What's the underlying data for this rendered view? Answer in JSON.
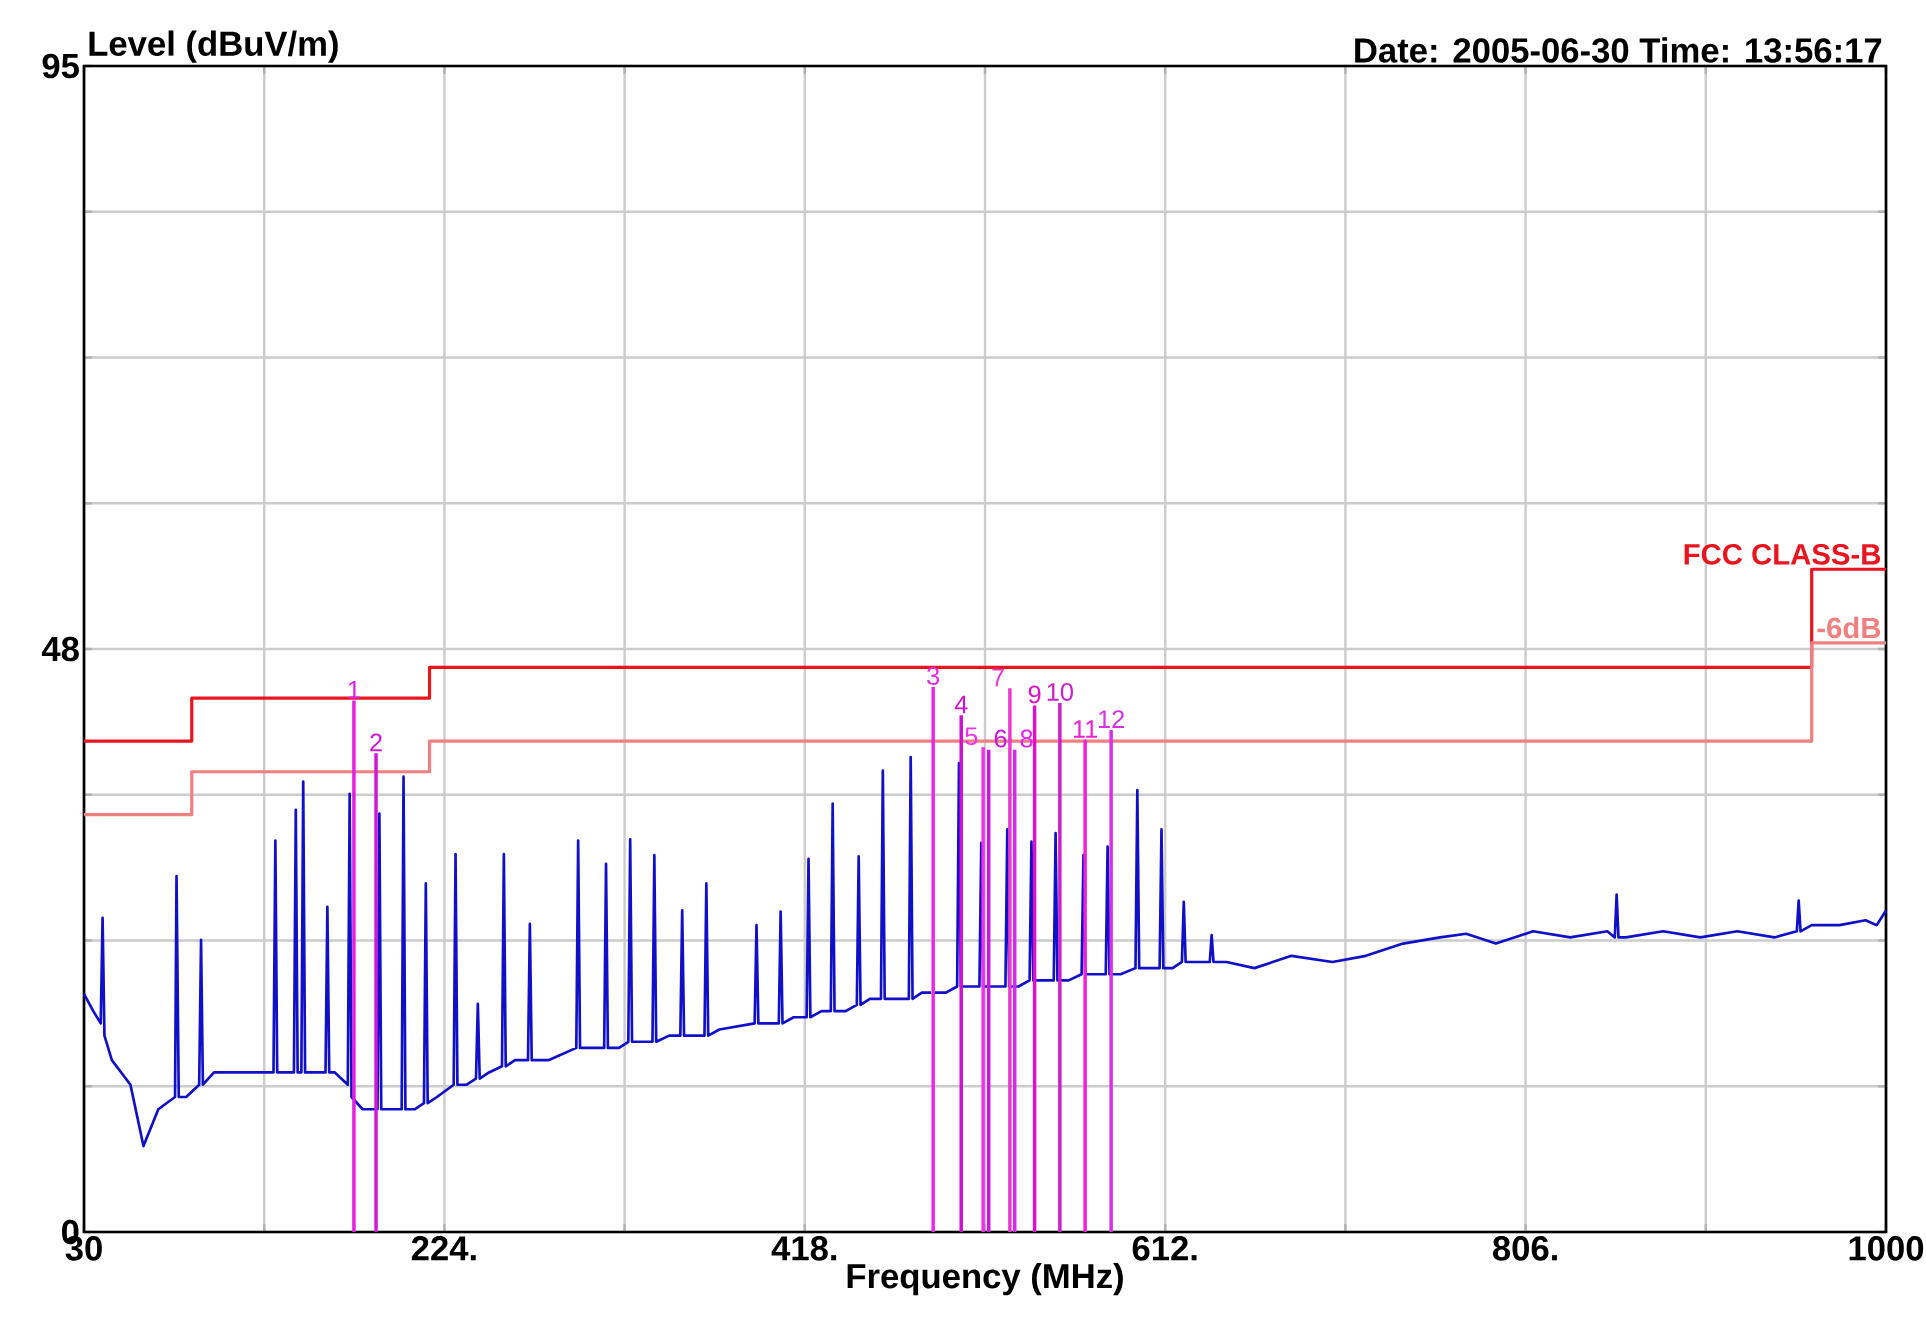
{
  "chart_data": {
    "type": "line",
    "ylabel": "Level (dBuV/m)",
    "xlabel": "Frequency (MHz)",
    "xlim": [
      30,
      1000
    ],
    "ylim": [
      0,
      95
    ],
    "xticks": [
      30,
      {
        "value": 127,
        "label": null
      },
      {
        "value": 224,
        "label": "224."
      },
      {
        "value": 321,
        "label": null
      },
      {
        "value": 418,
        "label": "418."
      },
      {
        "value": 515,
        "label": null
      },
      {
        "value": 612,
        "label": "612."
      },
      {
        "value": 709,
        "label": null
      },
      {
        "value": 806,
        "label": "806."
      },
      {
        "value": 903,
        "label": null
      },
      1000
    ],
    "yticks": [
      0,
      {
        "value": 11.875,
        "label": null
      },
      {
        "value": 23.75,
        "label": null
      },
      {
        "value": 35.625,
        "label": null
      },
      {
        "value": 47.5,
        "label": "48"
      },
      {
        "value": 59.375,
        "label": null
      },
      {
        "value": 71.25,
        "label": null
      },
      {
        "value": 83.125,
        "label": null
      },
      95
    ],
    "grid": true,
    "legend": false,
    "marker": "none",
    "series": [
      {
        "color": "#1010c8",
        "x": [
          30,
          35,
          39,
          40,
          41,
          45,
          55,
          62,
          70,
          79,
          79.8,
          81,
          85,
          92,
          93,
          94,
          100,
          120,
          132,
          133,
          134,
          143,
          144,
          145,
          147,
          148,
          149,
          155,
          160,
          161,
          162,
          165,
          172,
          173,
          174,
          180,
          188,
          189,
          190,
          195,
          201,
          202,
          203,
          208,
          213,
          214,
          215,
          220,
          229,
          230,
          231,
          236,
          241,
          242,
          243,
          248,
          255,
          256,
          257,
          262,
          269,
          270,
          271,
          280,
          295,
          296,
          297,
          303,
          310,
          311,
          312,
          318,
          323,
          324,
          325,
          330,
          336,
          337,
          338,
          345,
          351,
          352,
          353,
          358,
          364,
          365,
          366,
          372,
          391,
          392,
          393,
          398,
          404,
          405,
          406,
          412,
          419,
          420,
          421,
          427,
          432,
          433,
          434,
          440,
          446,
          447,
          448,
          453,
          459,
          460,
          461,
          467,
          474,
          475,
          476,
          481,
          486,
          487,
          488,
          494,
          500,
          501,
          502,
          507,
          512,
          513,
          514,
          520,
          526,
          527,
          528,
          533,
          539,
          540,
          541,
          546,
          552,
          553,
          554,
          560,
          567,
          568,
          569,
          574,
          580,
          581,
          582,
          588,
          596,
          597,
          598,
          603,
          609,
          610,
          611,
          616,
          621,
          622,
          623,
          629,
          636,
          637,
          638,
          645,
          660,
          680,
          702,
          720,
          740,
          760,
          774,
          790,
          810,
          830,
          850,
          854,
          855,
          856,
          860,
          880,
          900,
          920,
          940,
          952,
          953,
          954,
          960,
          975,
          989,
          995,
          1000
        ],
        "values": [
          19.4,
          18,
          17,
          25.6,
          16,
          14,
          12,
          7,
          10,
          11,
          29,
          11,
          11,
          12,
          23.8,
          12,
          13,
          13,
          13,
          31.9,
          13,
          13,
          34.4,
          13,
          13,
          36.7,
          13,
          13,
          13,
          26.5,
          13,
          13,
          12,
          35.7,
          11,
          10,
          10,
          34.1,
          10,
          10,
          10,
          37.1,
          10,
          10,
          10.5,
          28.4,
          10.5,
          11,
          12,
          30.8,
          12,
          12,
          12.5,
          18.6,
          12.5,
          13,
          13.5,
          30.8,
          13.5,
          14,
          14,
          25.1,
          14,
          14,
          15,
          31.9,
          15,
          15,
          15,
          30,
          15,
          15,
          15.5,
          32,
          15.5,
          15.5,
          15.5,
          30.7,
          15.5,
          16,
          16,
          26.2,
          16,
          16,
          16,
          28.4,
          16,
          16.5,
          17,
          25,
          17,
          17,
          17,
          26.1,
          17,
          17.5,
          17.5,
          30.4,
          17.5,
          18,
          18,
          34.9,
          18,
          18,
          18.5,
          30.6,
          18.5,
          19,
          19,
          37.6,
          19,
          19,
          19,
          38.7,
          19,
          19.5,
          19.5,
          null,
          19.5,
          19.5,
          20,
          38.2,
          20,
          20,
          20,
          31.7,
          20,
          20,
          20,
          32.8,
          20,
          20,
          20.5,
          31.8,
          20.5,
          20.5,
          20.5,
          32.5,
          20.5,
          20.5,
          21,
          30.7,
          21,
          21,
          21,
          31.4,
          21,
          21,
          21.5,
          36,
          21.5,
          21.5,
          21.5,
          32.8,
          21.5,
          21.5,
          22,
          26.9,
          22,
          22,
          22,
          24.2,
          22,
          22,
          21.5,
          22.5,
          22,
          22.5,
          23.5,
          24,
          24.3,
          23.5,
          24.5,
          24,
          24.5,
          24,
          27.5,
          24,
          24,
          24.5,
          24,
          24.5,
          24,
          24.5,
          27,
          24.5,
          25,
          25,
          25.4,
          25,
          26.2
        ]
      },
      {
        "name": "FCC CLASS-B",
        "color": "#e8141e",
        "x": [
          30,
          88,
          88,
          216,
          216,
          960,
          960,
          1000
        ],
        "values": [
          40,
          40,
          43.5,
          43.5,
          46,
          46,
          54,
          54
        ]
      },
      {
        "name": "-6dB",
        "color": "#f08080",
        "x": [
          30,
          88,
          88,
          216,
          216,
          960,
          960,
          1000
        ],
        "values": [
          34,
          34,
          37.5,
          37.5,
          40,
          40,
          48,
          48
        ]
      },
      {
        "name": "1",
        "color": "#e020e0",
        "x": [
          175.3,
          175.3
        ],
        "values": [
          0,
          43.3
        ]
      },
      {
        "name": "2",
        "color": "#d018d8",
        "x": [
          187.2,
          187.2
        ],
        "values": [
          0,
          39.0
        ]
      },
      {
        "name": "3",
        "color": "#e828e8",
        "x": [
          487.1,
          487.1
        ],
        "values": [
          0,
          44.4
        ]
      },
      {
        "name": "4",
        "color": "#d010d0",
        "x": [
          502.2,
          502.2
        ],
        "values": [
          0,
          42.1
        ]
      },
      {
        "name": "5",
        "color": "#f030f0",
        "x": [
          514,
          514
        ],
        "values": [
          0,
          39.5
        ]
      },
      {
        "name": "6",
        "color": "#c818e0",
        "x": [
          517,
          517
        ],
        "values": [
          0,
          39.3
        ]
      },
      {
        "name": "7",
        "color": "#e838d0",
        "x": [
          528.4,
          528.4
        ],
        "values": [
          0,
          44.3
        ]
      },
      {
        "name": "8",
        "color": "#d828f0",
        "x": [
          531,
          531
        ],
        "values": [
          0,
          39.3
        ]
      },
      {
        "name": "9",
        "color": "#e010c8",
        "x": [
          541.7,
          541.7
        ],
        "values": [
          0,
          42.9
        ]
      },
      {
        "name": "10",
        "color": "#cc20cc",
        "x": [
          555.3,
          555.3
        ],
        "values": [
          0,
          43.1
        ]
      },
      {
        "name": "11",
        "color": "#f020d8",
        "x": [
          568.9,
          568.9
        ],
        "values": [
          0,
          40.1
        ]
      },
      {
        "name": "12",
        "color": "#d830e8",
        "x": [
          582.9,
          582.9
        ],
        "values": [
          0,
          40.9
        ]
      }
    ],
    "annotations": [
      "Date: 2005-06-30  Time: 13:56:17"
    ]
  }
}
